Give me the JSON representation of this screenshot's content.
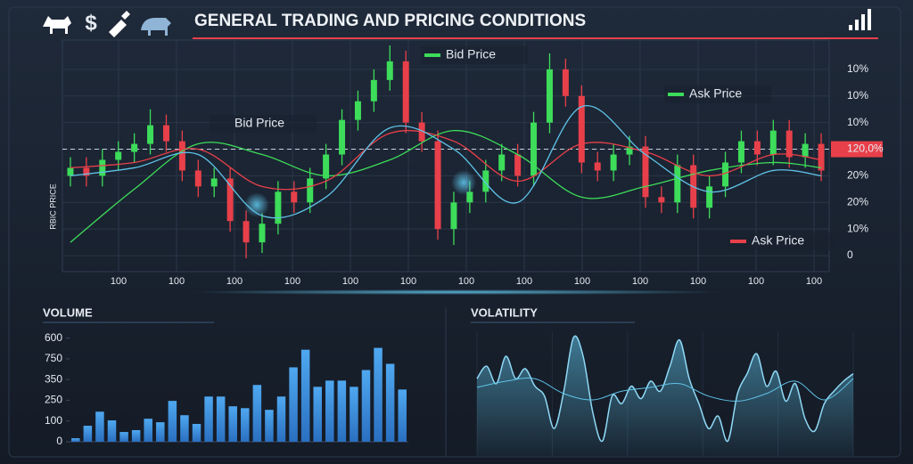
{
  "header": {
    "title": "GENERAL TRADING AND PRICING CONDITIONS",
    "dollar": "$"
  },
  "chart_data": [
    {
      "type": "candlestick",
      "y_label": "RBIC PRICE",
      "xtick_labels": [
        "100",
        "100",
        "100",
        "100",
        "100",
        "100",
        "100",
        "100",
        "100",
        "100",
        "100",
        "100",
        "100"
      ],
      "open": [
        3.0,
        3.3,
        3.0,
        3.6,
        3.9,
        4.2,
        4.9,
        4.3,
        3.2,
        2.6,
        2.9,
        1.3,
        0.5,
        1.2,
        2.4,
        2.0,
        2.9,
        3.8,
        5.1,
        5.8,
        6.6,
        7.3,
        5.0,
        4.3,
        1.0,
        2.0,
        2.4,
        3.2,
        3.8,
        3.0,
        5.0,
        7.0,
        6.0,
        3.5,
        3.2,
        3.8,
        4.1,
        2.2,
        2.0,
        3.4,
        1.8,
        2.6,
        3.5,
        4.3,
        3.8,
        4.7,
        3.7,
        4.2
      ],
      "high": [
        3.7,
        3.7,
        4.0,
        4.3,
        4.6,
        5.5,
        5.3,
        4.7,
        3.6,
        3.3,
        3.3,
        1.7,
        1.6,
        2.8,
        2.8,
        3.3,
        4.2,
        5.5,
        6.2,
        7.0,
        7.9,
        7.7,
        5.4,
        4.7,
        2.4,
        2.8,
        3.6,
        4.2,
        4.2,
        5.4,
        7.6,
        7.4,
        6.4,
        3.9,
        4.2,
        4.5,
        4.5,
        2.6,
        3.8,
        3.8,
        3.0,
        3.9,
        4.7,
        4.7,
        5.1,
        5.1,
        4.6,
        4.6
      ],
      "low": [
        2.6,
        2.6,
        2.6,
        3.2,
        3.5,
        3.8,
        3.9,
        2.8,
        2.2,
        2.2,
        0.9,
        -0.1,
        0.1,
        0.8,
        1.6,
        1.6,
        2.5,
        3.4,
        4.7,
        5.4,
        6.2,
        4.6,
        3.9,
        0.6,
        0.4,
        1.6,
        2.0,
        2.8,
        2.6,
        2.6,
        4.6,
        5.6,
        3.1,
        2.8,
        2.8,
        3.4,
        1.8,
        1.6,
        1.6,
        1.4,
        1.4,
        2.2,
        3.1,
        3.4,
        3.4,
        3.3,
        3.3,
        2.8
      ],
      "close": [
        3.3,
        3.0,
        3.6,
        3.9,
        4.2,
        4.9,
        4.3,
        3.2,
        2.6,
        2.9,
        1.3,
        0.5,
        1.2,
        2.4,
        2.0,
        2.9,
        3.8,
        5.1,
        5.8,
        6.6,
        7.3,
        5.0,
        4.3,
        1.0,
        2.0,
        2.4,
        3.2,
        3.8,
        3.0,
        5.0,
        7.0,
        6.0,
        3.5,
        3.2,
        3.8,
        4.1,
        2.2,
        2.0,
        3.4,
        1.8,
        2.6,
        3.5,
        4.3,
        3.8,
        4.7,
        3.7,
        4.2,
        3.2
      ],
      "up_color": "#3ddc5a",
      "down_color": "#e8404a",
      "lines": [
        {
          "color": "#3ddc5a",
          "x": [
            0,
            4,
            8,
            12,
            16,
            20,
            24,
            28,
            32,
            36,
            40,
            44,
            47
          ],
          "values": [
            0.5,
            2.5,
            4.2,
            3.8,
            3.0,
            3.6,
            4.7,
            3.8,
            2.2,
            2.6,
            3.2,
            3.5,
            3.3
          ]
        },
        {
          "color": "#e8404a",
          "x": [
            0,
            4,
            8,
            12,
            16,
            20,
            24,
            28,
            32,
            36,
            40,
            44,
            47
          ],
          "values": [
            3.3,
            3.5,
            4.0,
            2.6,
            2.8,
            4.6,
            4.3,
            2.8,
            4.2,
            3.9,
            3.0,
            3.8,
            3.6
          ]
        },
        {
          "color": "#5fc3e8",
          "x": [
            0,
            4,
            8,
            12,
            16,
            20,
            24,
            28,
            32,
            36,
            40,
            44,
            47
          ],
          "values": [
            3.0,
            3.3,
            3.8,
            1.5,
            2.2,
            4.8,
            4.0,
            2.0,
            5.6,
            3.8,
            2.4,
            3.2,
            3.0
          ]
        }
      ],
      "ylim": [
        -0.6,
        8.1
      ],
      "yticks": [
        {
          "value": 7,
          "label": "10%"
        },
        {
          "value": 6,
          "label": "10%"
        },
        {
          "value": 5,
          "label": "10%"
        },
        {
          "value": 4,
          "label": "120,0%"
        },
        {
          "value": 3,
          "label": "20%"
        },
        {
          "value": 2,
          "label": "20%"
        },
        {
          "value": 1,
          "label": "10%"
        },
        0
      ],
      "highlight_tick": 3,
      "highlight_color": "#e8404a",
      "grid": true,
      "annotations": [
        {
          "text": "Bid Price",
          "color": "#3ddc5a"
        },
        {
          "text": "Bid Price"
        },
        {
          "text": "Ask Price",
          "color": "#3ddc5a"
        },
        {
          "text": "Ask Price",
          "color": "#e8404a"
        }
      ]
    },
    {
      "type": "bar",
      "title": "VOLUME",
      "color": "#3a8fe0",
      "values": [
        17,
        77,
        145,
        103,
        47,
        56,
        111,
        94,
        197,
        128,
        86,
        218,
        218,
        171,
        162,
        274,
        154,
        218,
        359,
        444,
        265,
        295,
        295,
        265,
        346,
        453,
        376,
        252
      ],
      "ylim": [
        0,
        520
      ],
      "yticks": [
        {
          "value": 500,
          "label": "600"
        },
        {
          "value": 400,
          "label": "750"
        },
        {
          "value": 300,
          "label": "350"
        },
        {
          "value": 200,
          "label": "250"
        },
        100,
        0
      ]
    },
    {
      "type": "area",
      "title": "VOLATILITY",
      "ylim": [
        0,
        100
      ],
      "series": [
        {
          "color": "#8fd8f5",
          "values": [
            62,
            72,
            58,
            80,
            62,
            70,
            56,
            48,
            22,
            52,
            95,
            80,
            35,
            12,
            48,
            42,
            56,
            46,
            60,
            52,
            72,
            93,
            62,
            42,
            22,
            32,
            12,
            50,
            66,
            82,
            56,
            68,
            44,
            58,
            30,
            20,
            42,
            52,
            60,
            66
          ]
        },
        {
          "color": "#5fc3e8",
          "x": [
            0,
            3,
            6,
            9,
            12,
            15,
            18,
            21,
            24,
            27,
            30,
            33,
            36,
            39
          ],
          "values": [
            55,
            60,
            62,
            50,
            45,
            52,
            55,
            58,
            48,
            44,
            50,
            60,
            45,
            62
          ]
        }
      ]
    }
  ]
}
